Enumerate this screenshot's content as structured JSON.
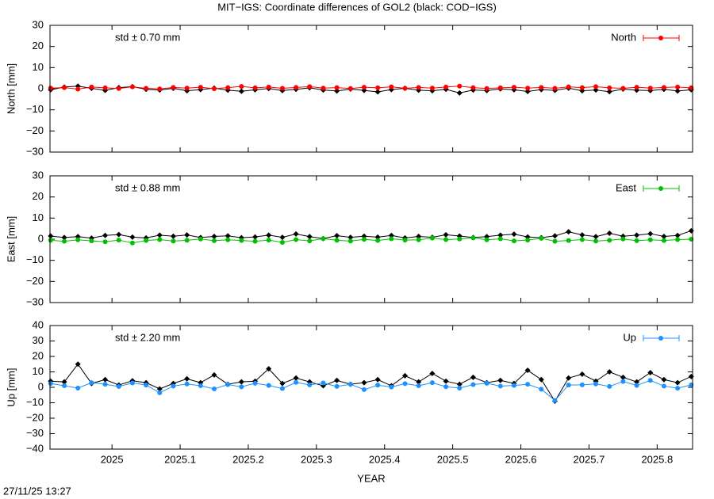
{
  "title": "MIT−IGS: Coordinate differences of GOL2 (black: COD−IGS)",
  "timestamp": "27/11/25 13:27",
  "chart_data": [
    {
      "type": "line",
      "ylabel": "North [mm]",
      "annotation": "std ± 0.70 mm",
      "xlim": [
        2024.909,
        2025.852
      ],
      "xticks": [
        2025,
        2025.1,
        2025.2,
        2025.3,
        2025.4,
        2025.5,
        2025.6,
        2025.7,
        2025.8
      ],
      "ylim": [
        -30,
        30
      ],
      "yticks": [
        {
          "value": -30,
          "label": "−30"
        },
        {
          "value": -20,
          "label": "−20"
        },
        {
          "value": -10,
          "label": "−10"
        },
        0,
        10,
        20,
        30
      ],
      "legend": "upper right",
      "x": [
        2024.91,
        2024.93,
        2024.95,
        2024.97,
        2024.99,
        2025.01,
        2025.03,
        2025.05,
        2025.07,
        2025.09,
        2025.11,
        2025.13,
        2025.15,
        2025.17,
        2025.19,
        2025.21,
        2025.23,
        2025.25,
        2025.27,
        2025.29,
        2025.31,
        2025.33,
        2025.35,
        2025.37,
        2025.39,
        2025.41,
        2025.43,
        2025.45,
        2025.47,
        2025.49,
        2025.51,
        2025.53,
        2025.55,
        2025.57,
        2025.59,
        2025.61,
        2025.63,
        2025.65,
        2025.67,
        2025.69,
        2025.71,
        2025.73,
        2025.75,
        2025.77,
        2025.79,
        2025.81,
        2025.83,
        2025.85
      ],
      "series": [
        {
          "color": "#000000",
          "values": [
            -0.5,
            0.8,
            1.2,
            0.2,
            -0.8,
            0.5,
            1.0,
            -0.3,
            -0.6,
            0.2,
            -1.0,
            -0.4,
            0.3,
            -0.7,
            -1.2,
            -0.5,
            0.1,
            -0.9,
            -0.3,
            0.4,
            -0.6,
            -1.1,
            -0.2,
            -0.8,
            -1.5,
            -0.4,
            0.2,
            -0.7,
            -1.0,
            -0.3,
            -2.0,
            -0.6,
            -0.9,
            -0.1,
            -0.5,
            -1.3,
            -0.4,
            -0.8,
            0.3,
            -1.0,
            -0.6,
            -1.4,
            -0.2,
            -0.7,
            -0.9,
            -0.3,
            -1.1,
            -0.5
          ]
        },
        {
          "name": "North",
          "color": "#ff0000",
          "values": [
            0.3,
            0.5,
            -0.2,
            0.8,
            0.4,
            0.1,
            0.9,
            0.2,
            -0.1,
            0.6,
            0.3,
            0.7,
            0.0,
            0.5,
            1.1,
            0.4,
            0.8,
            0.2,
            0.6,
            1.0,
            0.3,
            0.5,
            0.1,
            0.7,
            0.4,
            0.9,
            0.2,
            0.6,
            0.3,
            0.8,
            1.2,
            0.5,
            0.1,
            0.4,
            0.7,
            0.3,
            0.6,
            0.2,
            0.9,
            0.5,
            1.0,
            0.4,
            0.2,
            0.7,
            0.3,
            0.6,
            0.8,
            0.4
          ]
        }
      ]
    },
    {
      "type": "line",
      "ylabel": "East [mm]",
      "annotation": "std ± 0.88 mm",
      "xlim": [
        2024.909,
        2025.852
      ],
      "xticks": [
        2025,
        2025.1,
        2025.2,
        2025.3,
        2025.4,
        2025.5,
        2025.6,
        2025.7,
        2025.8
      ],
      "ylim": [
        -30,
        30
      ],
      "yticks": [
        {
          "value": -30,
          "label": "−30"
        },
        {
          "value": -20,
          "label": "−20"
        },
        {
          "value": -10,
          "label": "−10"
        },
        0,
        10,
        20,
        30
      ],
      "legend": "upper right",
      "x": [
        2024.91,
        2024.93,
        2024.95,
        2024.97,
        2024.99,
        2025.01,
        2025.03,
        2025.05,
        2025.07,
        2025.09,
        2025.11,
        2025.13,
        2025.15,
        2025.17,
        2025.19,
        2025.21,
        2025.23,
        2025.25,
        2025.27,
        2025.29,
        2025.31,
        2025.33,
        2025.35,
        2025.37,
        2025.39,
        2025.41,
        2025.43,
        2025.45,
        2025.47,
        2025.49,
        2025.51,
        2025.53,
        2025.55,
        2025.57,
        2025.59,
        2025.61,
        2025.63,
        2025.65,
        2025.67,
        2025.69,
        2025.71,
        2025.73,
        2025.75,
        2025.77,
        2025.79,
        2025.81,
        2025.83,
        2025.85
      ],
      "series": [
        {
          "color": "#000000",
          "values": [
            1.5,
            0.8,
            1.2,
            0.5,
            1.8,
            2.2,
            1.0,
            0.6,
            1.9,
            1.4,
            2.0,
            0.8,
            1.3,
            1.6,
            0.7,
            1.1,
            1.9,
            0.9,
            2.5,
            1.2,
            0.3,
            1.7,
            0.9,
            1.4,
            1.0,
            1.8,
            0.6,
            1.3,
            0.9,
            2.1,
            1.5,
            0.8,
            1.2,
            1.9,
            2.4,
            1.1,
            0.7,
            1.6,
            3.5,
            2.0,
            1.2,
            2.8,
            1.4,
            1.9,
            2.6,
            1.3,
            1.8,
            4.0
          ]
        },
        {
          "name": "East",
          "color": "#00c000",
          "values": [
            -0.5,
            -1.0,
            -0.3,
            -0.8,
            -1.2,
            -0.4,
            -1.8,
            -0.6,
            -0.2,
            -0.9,
            -0.5,
            0.1,
            -0.7,
            -0.3,
            -0.6,
            -1.0,
            -0.4,
            -1.5,
            -0.2,
            -0.8,
            0.3,
            -0.5,
            -0.9,
            -0.1,
            -0.6,
            0.2,
            -0.4,
            -0.3,
            0.5,
            -0.2,
            0.1,
            0.6,
            -0.3,
            0.2,
            -0.8,
            -0.4,
            0.4,
            -1.0,
            -0.6,
            -0.2,
            -0.9,
            -0.5,
            0.1,
            -0.7,
            -0.3,
            -0.6,
            -0.2,
            0.0
          ]
        }
      ]
    },
    {
      "type": "line",
      "ylabel": "Up [mm]",
      "annotation": "std ± 2.20 mm",
      "xlabel": "YEAR",
      "xlim": [
        2024.909,
        2025.852
      ],
      "xticks": [
        2025,
        2025.1,
        2025.2,
        2025.3,
        2025.4,
        2025.5,
        2025.6,
        2025.7,
        2025.8
      ],
      "ylim": [
        -40,
        40
      ],
      "yticks": [
        {
          "value": -40,
          "label": "−40"
        },
        {
          "value": -30,
          "label": "−30"
        },
        {
          "value": -20,
          "label": "−20"
        },
        {
          "value": -10,
          "label": "−10"
        },
        0,
        10,
        20,
        30,
        40
      ],
      "legend": "upper right",
      "x": [
        2024.91,
        2024.93,
        2024.95,
        2024.97,
        2024.99,
        2025.01,
        2025.03,
        2025.05,
        2025.07,
        2025.09,
        2025.11,
        2025.13,
        2025.15,
        2025.17,
        2025.19,
        2025.21,
        2025.23,
        2025.25,
        2025.27,
        2025.29,
        2025.31,
        2025.33,
        2025.35,
        2025.37,
        2025.39,
        2025.41,
        2025.43,
        2025.45,
        2025.47,
        2025.49,
        2025.51,
        2025.53,
        2025.55,
        2025.57,
        2025.59,
        2025.61,
        2025.63,
        2025.65,
        2025.67,
        2025.69,
        2025.71,
        2025.73,
        2025.75,
        2025.77,
        2025.79,
        2025.81,
        2025.83,
        2025.85
      ],
      "series": [
        {
          "color": "#000000",
          "values": [
            4.0,
            3.5,
            15.0,
            2.5,
            5.0,
            1.5,
            4.2,
            3.0,
            -1.0,
            2.5,
            5.5,
            3.0,
            8.0,
            2.0,
            3.5,
            4.0,
            12.0,
            2.5,
            6.0,
            3.5,
            1.0,
            4.5,
            2.0,
            3.0,
            5.0,
            1.0,
            7.5,
            3.5,
            9.0,
            4.0,
            2.0,
            6.5,
            3.0,
            4.5,
            2.5,
            11.0,
            5.0,
            -9.0,
            6.0,
            8.5,
            4.0,
            10.0,
            6.5,
            3.5,
            9.5,
            5.0,
            3.0,
            7.0
          ]
        },
        {
          "name": "Up",
          "color": "#1e90ff",
          "values": [
            2.5,
            1.0,
            -0.5,
            3.0,
            2.0,
            0.5,
            2.8,
            1.5,
            -3.5,
            0.8,
            2.2,
            1.0,
            -1.0,
            1.8,
            0.3,
            2.6,
            1.2,
            -0.8,
            3.2,
            1.6,
            2.8,
            0.6,
            2.0,
            -1.5,
            1.4,
            0.2,
            2.4,
            1.0,
            3.0,
            0.4,
            -0.5,
            1.8,
            2.6,
            0.8,
            1.2,
            2.0,
            -1.2,
            -8.5,
            1.5,
            1.6,
            2.2,
            0.6,
            3.8,
            1.2,
            4.5,
            0.8,
            -0.6,
            1.6
          ]
        }
      ]
    }
  ]
}
